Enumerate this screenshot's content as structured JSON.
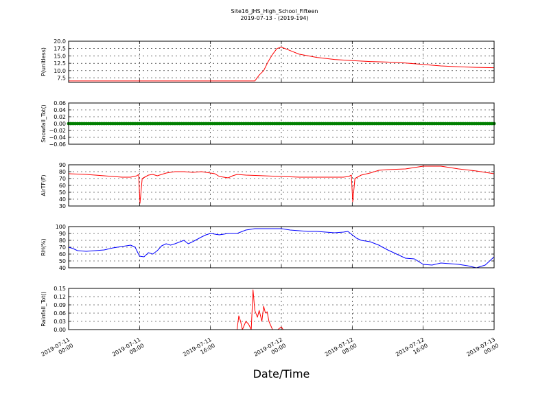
{
  "figure": {
    "title_line1": "Site16_JHS_High_School_Fifteen",
    "title_line2": "2019-07-13 - (2019-194)",
    "xlabel": "Date/Time"
  },
  "chart_data": [
    {
      "type": "line",
      "ylabel": "P(unitless)",
      "color": "#ff0000",
      "ylim": [
        6,
        20
      ],
      "yticks": [
        7.5,
        10.0,
        12.5,
        15.0,
        17.5,
        20.0
      ],
      "ytick_labels": [
        "7.5",
        "10.0",
        "12.5",
        "15.0",
        "17.5",
        "20.0"
      ],
      "x": [
        0,
        4,
        8,
        12,
        16,
        20,
        21,
        21.5,
        22,
        22.5,
        23,
        23.5,
        24,
        25,
        26,
        28,
        30,
        32,
        34,
        36,
        38,
        40,
        42,
        44,
        46,
        48
      ],
      "y": [
        6.5,
        6.5,
        6.5,
        6.5,
        6.5,
        6.5,
        6.5,
        8.5,
        10.0,
        13.0,
        15.5,
        17.5,
        18.0,
        16.8,
        15.6,
        14.5,
        13.8,
        13.4,
        13.1,
        12.9,
        12.6,
        12.1,
        11.6,
        11.3,
        11.1,
        11.0
      ]
    },
    {
      "type": "line",
      "ylabel": "Snowfall_Tot()",
      "color": "#008000",
      "ylim": [
        -0.06,
        0.06
      ],
      "yticks": [
        -0.06,
        -0.04,
        -0.02,
        0.0,
        0.02,
        0.04,
        0.06
      ],
      "ytick_labels": [
        "−0.06",
        "−0.04",
        "−0.02",
        "0.00",
        "0.02",
        "0.04",
        "0.06"
      ],
      "x": [
        0,
        48
      ],
      "y": [
        0,
        0
      ],
      "markers": true
    },
    {
      "type": "line",
      "ylabel": "AirTF(F)",
      "color": "#ff0000",
      "ylim": [
        30,
        90
      ],
      "yticks": [
        30,
        40,
        50,
        60,
        70,
        80,
        90
      ],
      "ytick_labels": [
        "30",
        "40",
        "50",
        "60",
        "70",
        "80",
        "90"
      ],
      "x": [
        0,
        2,
        4,
        6,
        7,
        7.7,
        7.9,
        8.05,
        8.3,
        9,
        9.5,
        10,
        11,
        12,
        13,
        14,
        15,
        16,
        16.5,
        17,
        18,
        18.5,
        19,
        20,
        22,
        24,
        26,
        28,
        30,
        31,
        31.6,
        31.9,
        32.05,
        32.3,
        33,
        34,
        35,
        36,
        38,
        39,
        40,
        41,
        42,
        43,
        44,
        46,
        48
      ],
      "y": [
        77,
        76,
        74,
        72,
        72,
        74,
        76,
        34,
        70,
        75,
        76,
        74,
        78,
        80,
        80,
        79,
        80,
        78,
        77,
        73,
        71,
        74,
        76,
        75,
        74,
        73,
        72,
        72,
        72,
        72,
        73,
        75,
        36,
        70,
        75,
        78,
        82,
        83,
        84,
        86,
        88,
        88,
        88,
        86,
        84,
        81,
        77
      ]
    },
    {
      "type": "line",
      "ylabel": "RH(%)",
      "color": "#0000ff",
      "ylim": [
        40,
        100
      ],
      "yticks": [
        40,
        50,
        60,
        70,
        80,
        90,
        100
      ],
      "ytick_labels": [
        "40",
        "50",
        "60",
        "70",
        "80",
        "90",
        "100"
      ],
      "x": [
        0,
        0.5,
        1,
        2,
        3,
        4,
        5,
        6,
        7,
        7.5,
        8,
        8.5,
        9,
        9.5,
        10,
        10.5,
        11,
        11.5,
        12,
        13,
        13.5,
        14,
        15,
        15.5,
        16,
        17,
        18,
        19,
        20,
        21,
        22,
        23,
        24,
        25,
        26,
        27,
        28,
        29,
        30,
        31,
        31.5,
        32,
        32.5,
        33,
        34,
        35,
        36,
        37,
        38,
        39,
        40,
        41,
        42,
        43,
        44,
        45,
        46,
        47,
        48
      ],
      "y": [
        70,
        68,
        65,
        64,
        65,
        66,
        69,
        71,
        73,
        70,
        57,
        56,
        62,
        60,
        65,
        72,
        75,
        73,
        75,
        80,
        75,
        78,
        85,
        88,
        90,
        88,
        90,
        90,
        95,
        97,
        97,
        97,
        97,
        95,
        94,
        93,
        93,
        92,
        91,
        92,
        93,
        88,
        83,
        80,
        78,
        73,
        66,
        60,
        54,
        53,
        45,
        44,
        47,
        46,
        45,
        43,
        40,
        44,
        56
      ]
    },
    {
      "type": "line",
      "ylabel": "Rainfall_Tot()",
      "color": "#ff0000",
      "ylim": [
        0,
        0.15
      ],
      "yticks": [
        0.0,
        0.03,
        0.06,
        0.09,
        0.12,
        0.15
      ],
      "ytick_labels": [
        "0.00",
        "0.03",
        "0.06",
        "0.09",
        "0.12",
        "0.15"
      ],
      "x": [
        0,
        19,
        19.2,
        19.4,
        19.6,
        20,
        20.3,
        20.6,
        20.8,
        21,
        21.3,
        21.5,
        21.8,
        22,
        22.2,
        22.4,
        22.6,
        22.8,
        23,
        23.2,
        23.4,
        23.6,
        24,
        24.2,
        24.4,
        24.6,
        48
      ],
      "y": [
        0,
        0,
        0.05,
        0.03,
        0.0,
        0.03,
        0.02,
        0.0,
        0.145,
        0.07,
        0.045,
        0.07,
        0.03,
        0.085,
        0.06,
        0.065,
        0.03,
        0.015,
        0.0,
        0.0,
        0.0,
        0.0,
        0.01,
        0.0,
        0.0,
        0.0,
        0.0
      ]
    }
  ],
  "x_axis": {
    "range": [
      0,
      48
    ],
    "ticks": [
      0,
      8,
      16,
      24,
      32,
      40,
      48
    ],
    "tick_labels": [
      [
        "2019-07-11",
        "00:00"
      ],
      [
        "2019-07-11",
        "08:00"
      ],
      [
        "2019-07-11",
        "16:00"
      ],
      [
        "2019-07-12",
        "00:00"
      ],
      [
        "2019-07-12",
        "08:00"
      ],
      [
        "2019-07-12",
        "16:00"
      ],
      [
        "2019-07-13",
        "00:00"
      ]
    ]
  }
}
